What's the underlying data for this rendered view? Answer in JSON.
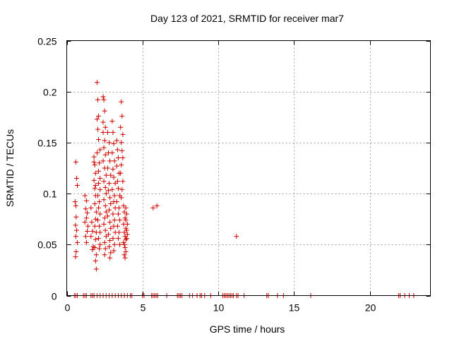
{
  "chart_data": {
    "type": "scatter",
    "title": "Day 123 of 2021, SRMTID for receiver mar7",
    "xlabel": "GPS time / hours",
    "ylabel": "SRMTID / TECUs",
    "xlim": [
      0,
      24
    ],
    "ylim": [
      0,
      0.25
    ],
    "xticks": [
      0,
      5,
      10,
      15,
      20
    ],
    "xtick_labels": [
      "0",
      "5",
      "10",
      "15",
      "20"
    ],
    "yticks": [
      0,
      0.05,
      0.1,
      0.15,
      0.2,
      0.25
    ],
    "ytick_labels": [
      "0",
      "0.05",
      "0.1",
      "0.15",
      "0.2",
      "0.25"
    ],
    "grid": true,
    "marker": "+",
    "series": [
      {
        "name": "SRMTID",
        "color": "#cc0000",
        "points": [
          [
            0.6,
            0.131
          ],
          [
            0.65,
            0.115
          ],
          [
            0.7,
            0.108
          ],
          [
            0.55,
            0.092
          ],
          [
            0.6,
            0.088
          ],
          [
            0.62,
            0.077
          ],
          [
            0.58,
            0.069
          ],
          [
            0.65,
            0.064
          ],
          [
            0.6,
            0.058
          ],
          [
            0.7,
            0.052
          ],
          [
            0.62,
            0.043
          ],
          [
            0.58,
            0.038
          ],
          [
            0.7,
            0.108
          ],
          [
            1.2,
            0.098
          ],
          [
            1.3,
            0.093
          ],
          [
            1.25,
            0.085
          ],
          [
            1.35,
            0.081
          ],
          [
            1.3,
            0.076
          ],
          [
            1.2,
            0.072
          ],
          [
            1.4,
            0.068
          ],
          [
            1.35,
            0.063
          ],
          [
            1.25,
            0.058
          ],
          [
            1.3,
            0.052
          ],
          [
            1.6,
            0.086
          ],
          [
            1.65,
            0.072
          ],
          [
            1.7,
            0.063
          ],
          [
            1.6,
            0.058
          ],
          [
            1.75,
            0.048
          ],
          [
            1.7,
            0.045
          ],
          [
            1.8,
            0.136
          ],
          [
            1.85,
            0.128
          ],
          [
            1.9,
            0.12
          ],
          [
            1.8,
            0.113
          ],
          [
            1.85,
            0.105
          ],
          [
            1.9,
            0.098
          ],
          [
            1.85,
            0.09
          ],
          [
            1.95,
            0.082
          ],
          [
            1.9,
            0.075
          ],
          [
            1.85,
            0.068
          ],
          [
            1.95,
            0.062
          ],
          [
            1.9,
            0.055
          ],
          [
            1.85,
            0.047
          ],
          [
            1.95,
            0.04
          ],
          [
            1.9,
            0.034
          ],
          [
            1.95,
            0.026
          ],
          [
            1.8,
            0.131
          ],
          [
            1.9,
            0.108
          ],
          [
            2.0,
            0.209
          ],
          [
            2.05,
            0.192
          ],
          [
            2.1,
            0.176
          ],
          [
            2.0,
            0.173
          ],
          [
            2.05,
            0.163
          ],
          [
            2.1,
            0.153
          ],
          [
            2.2,
            0.143
          ],
          [
            2.0,
            0.14
          ],
          [
            2.15,
            0.13
          ],
          [
            2.1,
            0.122
          ],
          [
            2.2,
            0.115
          ],
          [
            2.1,
            0.11
          ],
          [
            2.2,
            0.104
          ],
          [
            2.05,
            0.098
          ],
          [
            2.15,
            0.092
          ],
          [
            2.1,
            0.086
          ],
          [
            2.2,
            0.08
          ],
          [
            2.05,
            0.074
          ],
          [
            2.15,
            0.068
          ],
          [
            2.2,
            0.062
          ],
          [
            2.1,
            0.056
          ],
          [
            2.2,
            0.05
          ],
          [
            2.15,
            0.046
          ],
          [
            2.4,
            0.195
          ],
          [
            2.45,
            0.192
          ],
          [
            2.5,
            0.181
          ],
          [
            2.4,
            0.17
          ],
          [
            2.55,
            0.165
          ],
          [
            2.4,
            0.16
          ],
          [
            2.5,
            0.152
          ],
          [
            2.45,
            0.145
          ],
          [
            2.55,
            0.138
          ],
          [
            2.4,
            0.132
          ],
          [
            2.5,
            0.125
          ],
          [
            2.6,
            0.118
          ],
          [
            2.45,
            0.112
          ],
          [
            2.55,
            0.106
          ],
          [
            2.6,
            0.1
          ],
          [
            2.45,
            0.094
          ],
          [
            2.55,
            0.088
          ],
          [
            2.6,
            0.082
          ],
          [
            2.5,
            0.076
          ],
          [
            2.45,
            0.07
          ],
          [
            2.55,
            0.064
          ],
          [
            2.6,
            0.058
          ],
          [
            2.5,
            0.052
          ],
          [
            2.55,
            0.046
          ],
          [
            2.5,
            0.04
          ],
          [
            2.7,
            0.16
          ],
          [
            2.8,
            0.15
          ],
          [
            2.75,
            0.14
          ],
          [
            2.85,
            0.132
          ],
          [
            2.7,
            0.125
          ],
          [
            2.9,
            0.118
          ],
          [
            2.8,
            0.11
          ],
          [
            2.75,
            0.103
          ],
          [
            2.85,
            0.096
          ],
          [
            2.9,
            0.09
          ],
          [
            2.8,
            0.084
          ],
          [
            2.7,
            0.078
          ],
          [
            2.85,
            0.072
          ],
          [
            2.9,
            0.066
          ],
          [
            2.75,
            0.06
          ],
          [
            2.85,
            0.054
          ],
          [
            2.8,
            0.048
          ],
          [
            2.9,
            0.042
          ],
          [
            2.85,
            0.037
          ],
          [
            3.0,
            0.171
          ],
          [
            3.05,
            0.16
          ],
          [
            3.1,
            0.149
          ],
          [
            3.0,
            0.14
          ],
          [
            3.15,
            0.132
          ],
          [
            3.05,
            0.124
          ],
          [
            3.1,
            0.116
          ],
          [
            3.2,
            0.11
          ],
          [
            3.0,
            0.104
          ],
          [
            3.15,
            0.098
          ],
          [
            3.1,
            0.092
          ],
          [
            3.2,
            0.086
          ],
          [
            3.05,
            0.08
          ],
          [
            3.15,
            0.074
          ],
          [
            3.1,
            0.068
          ],
          [
            3.2,
            0.062
          ],
          [
            3.05,
            0.056
          ],
          [
            3.15,
            0.05
          ],
          [
            3.1,
            0.044
          ],
          [
            3.3,
            0.152
          ],
          [
            3.35,
            0.143
          ],
          [
            3.4,
            0.135
          ],
          [
            3.3,
            0.127
          ],
          [
            3.45,
            0.12
          ],
          [
            3.35,
            0.112
          ],
          [
            3.4,
            0.105
          ],
          [
            3.5,
            0.098
          ],
          [
            3.3,
            0.092
          ],
          [
            3.45,
            0.086
          ],
          [
            3.4,
            0.08
          ],
          [
            3.5,
            0.074
          ],
          [
            3.35,
            0.068
          ],
          [
            3.45,
            0.062
          ],
          [
            3.4,
            0.056
          ],
          [
            3.5,
            0.05
          ],
          [
            3.6,
            0.19
          ],
          [
            3.65,
            0.176
          ],
          [
            3.55,
            0.165
          ],
          [
            3.7,
            0.158
          ],
          [
            3.6,
            0.15
          ],
          [
            3.65,
            0.142
          ],
          [
            3.7,
            0.135
          ],
          [
            3.6,
            0.128
          ],
          [
            3.55,
            0.12
          ],
          [
            3.7,
            0.112
          ],
          [
            3.65,
            0.104
          ],
          [
            3.6,
            0.096
          ],
          [
            3.75,
            0.088
          ],
          [
            3.8,
            0.082
          ],
          [
            3.85,
            0.076
          ],
          [
            3.75,
            0.07
          ],
          [
            3.9,
            0.066
          ],
          [
            3.8,
            0.062
          ],
          [
            3.85,
            0.058
          ],
          [
            3.9,
            0.055
          ],
          [
            3.75,
            0.052
          ],
          [
            3.8,
            0.05
          ],
          [
            3.85,
            0.047
          ],
          [
            3.9,
            0.043
          ],
          [
            3.8,
            0.04
          ],
          [
            3.85,
            0.037
          ],
          [
            3.9,
            0.086
          ],
          [
            3.95,
            0.08
          ],
          [
            3.9,
            0.074
          ],
          [
            4.0,
            0.07
          ],
          [
            3.95,
            0.064
          ],
          [
            4.0,
            0.06
          ],
          [
            3.95,
            0.056
          ],
          [
            5.7,
            0.086
          ],
          [
            5.95,
            0.088
          ],
          [
            11.2,
            0.058
          ],
          [
            0.5,
            0.0
          ],
          [
            0.6,
            0.0
          ],
          [
            0.7,
            0.0
          ],
          [
            1.1,
            0.0
          ],
          [
            1.2,
            0.0
          ],
          [
            1.3,
            0.0
          ],
          [
            1.6,
            0.0
          ],
          [
            1.7,
            0.0
          ],
          [
            1.8,
            0.0
          ],
          [
            2.0,
            0.0
          ],
          [
            2.2,
            0.0
          ],
          [
            2.4,
            0.0
          ],
          [
            2.6,
            0.0
          ],
          [
            2.8,
            0.0
          ],
          [
            3.0,
            0.0
          ],
          [
            3.2,
            0.0
          ],
          [
            3.4,
            0.0
          ],
          [
            3.6,
            0.0
          ],
          [
            3.8,
            0.0
          ],
          [
            4.0,
            0.0
          ],
          [
            4.2,
            0.0
          ],
          [
            4.3,
            0.0
          ],
          [
            5.0,
            0.0
          ],
          [
            5.1,
            0.0
          ],
          [
            5.6,
            0.0
          ],
          [
            5.7,
            0.0
          ],
          [
            5.8,
            0.0
          ],
          [
            5.9,
            0.0
          ],
          [
            6.0,
            0.0
          ],
          [
            6.6,
            0.0
          ],
          [
            7.3,
            0.0
          ],
          [
            7.4,
            0.0
          ],
          [
            7.5,
            0.0
          ],
          [
            7.6,
            0.0
          ],
          [
            8.1,
            0.0
          ],
          [
            8.3,
            0.0
          ],
          [
            8.6,
            0.0
          ],
          [
            8.8,
            0.0
          ],
          [
            8.9,
            0.0
          ],
          [
            9.1,
            0.0
          ],
          [
            9.5,
            0.0
          ],
          [
            10.3,
            0.0
          ],
          [
            10.4,
            0.0
          ],
          [
            10.5,
            0.0
          ],
          [
            10.6,
            0.0
          ],
          [
            10.7,
            0.0
          ],
          [
            10.8,
            0.0
          ],
          [
            10.9,
            0.0
          ],
          [
            11.0,
            0.0
          ],
          [
            11.2,
            0.0
          ],
          [
            11.3,
            0.0
          ],
          [
            11.7,
            0.0
          ],
          [
            13.2,
            0.0
          ],
          [
            13.3,
            0.0
          ],
          [
            13.9,
            0.0
          ],
          [
            14.3,
            0.0
          ],
          [
            16.1,
            0.0
          ],
          [
            21.9,
            0.0
          ],
          [
            22.0,
            0.0
          ],
          [
            22.3,
            0.0
          ],
          [
            22.6,
            0.0
          ],
          [
            22.9,
            0.0
          ]
        ]
      }
    ]
  }
}
